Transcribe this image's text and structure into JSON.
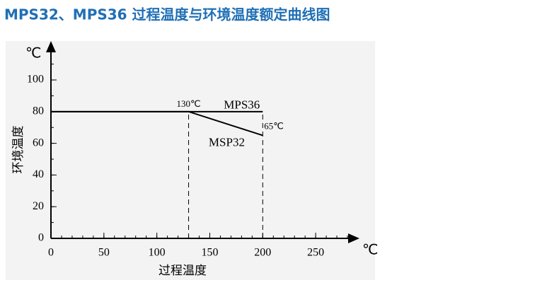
{
  "chart_data": {
    "type": "line",
    "title": "MPS32、MPS36 过程温度与环境温度额定曲线图",
    "x_unit": "℃",
    "y_unit": "℃",
    "x_label": "过程温度",
    "y_label": "环境温度",
    "xlim": [
      0,
      286
    ],
    "ylim": [
      0,
      121
    ],
    "xticks": [
      0,
      50,
      100,
      150,
      200,
      250
    ],
    "yticks": [
      0,
      20,
      40,
      60,
      80,
      100
    ],
    "minor_tick_step": {
      "x": 10,
      "y": 10
    },
    "series": [
      {
        "name": "MPS36",
        "color": "#000000",
        "x": [
          0,
          200
        ],
        "values": [
          80,
          80
        ]
      },
      {
        "name": "MSP32",
        "color": "#000000",
        "x": [
          0,
          130,
          200
        ],
        "values": [
          80,
          80,
          65
        ]
      }
    ],
    "guides": [
      {
        "x": 130,
        "y": 80
      },
      {
        "x": 200,
        "y": 80
      }
    ],
    "annotations": [
      {
        "text": "130℃",
        "x": 130,
        "y": 80
      },
      {
        "text": "65℃",
        "x": 200,
        "y": 65
      }
    ]
  }
}
